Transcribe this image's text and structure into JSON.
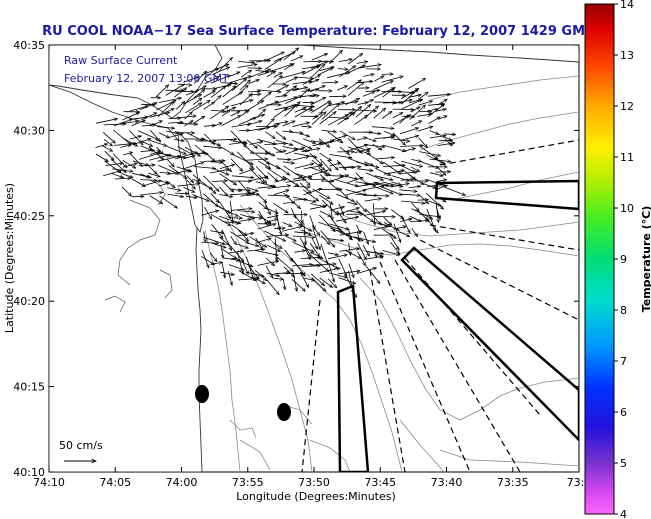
{
  "title": "RU COOL  NOAA−17  Sea Surface Temperature:  February 12, 2007 1429 GMT",
  "overlay_legend": {
    "line1": "Raw Surface Current",
    "line2": "February 12, 2007 13:00 GMT"
  },
  "scale_bar": {
    "label": "50 cm/s"
  },
  "axes": {
    "xlabel": "Longitude (Degrees:Minutes)",
    "ylabel": "Latitude (Degrees:Minutes)",
    "x_ticks": [
      "74:10",
      "74:05",
      "74:00",
      "73:55",
      "73:50",
      "73:45",
      "73:40",
      "73:35",
      "73:3"
    ],
    "y_ticks": [
      "40:35",
      "40:30",
      "40:25",
      "40:20",
      "40:15",
      "40:10"
    ]
  },
  "colorbar": {
    "label": "Temperature (°C)",
    "ticks": [
      "14",
      "13",
      "12",
      "11",
      "10",
      "9",
      "8",
      "7",
      "6",
      "5",
      "4"
    ],
    "range": [
      4,
      14
    ]
  },
  "colors": {
    "title": "#1a1aa8",
    "map_background": "#ffffff",
    "contour": "#888888",
    "coast": "#333333"
  }
}
